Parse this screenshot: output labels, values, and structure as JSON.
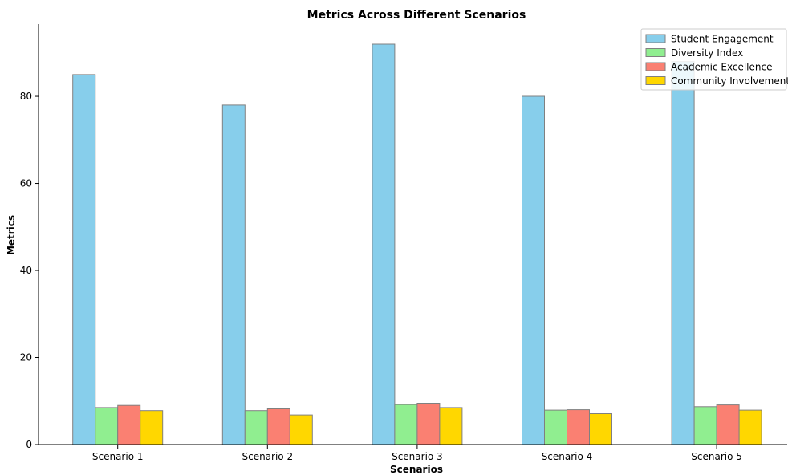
{
  "chart_data": {
    "type": "bar",
    "title": "Metrics Across Different Scenarios",
    "xlabel": "Scenarios",
    "ylabel": "Metrics",
    "categories": [
      "Scenario 1",
      "Scenario 2",
      "Scenario 3",
      "Scenario 4",
      "Scenario 5"
    ],
    "series": [
      {
        "name": "Student Engagement",
        "color": "#87CEEB",
        "values": [
          85,
          78,
          92,
          80,
          88
        ]
      },
      {
        "name": "Diversity Index",
        "color": "#90EE90",
        "values": [
          8.5,
          7.8,
          9.2,
          7.9,
          8.7
        ]
      },
      {
        "name": "Academic Excellence",
        "color": "#FA8072",
        "values": [
          9.0,
          8.2,
          9.5,
          8.0,
          9.1
        ]
      },
      {
        "name": "Community Involvement",
        "color": "#FFD700",
        "values": [
          7.8,
          6.8,
          8.5,
          7.1,
          7.9
        ]
      }
    ],
    "ylim": [
      0,
      96.6
    ],
    "yticks": [
      0,
      20,
      40,
      60,
      80
    ],
    "grid": false,
    "legend_position": "top-right",
    "bar_edge_color": "#808080"
  }
}
